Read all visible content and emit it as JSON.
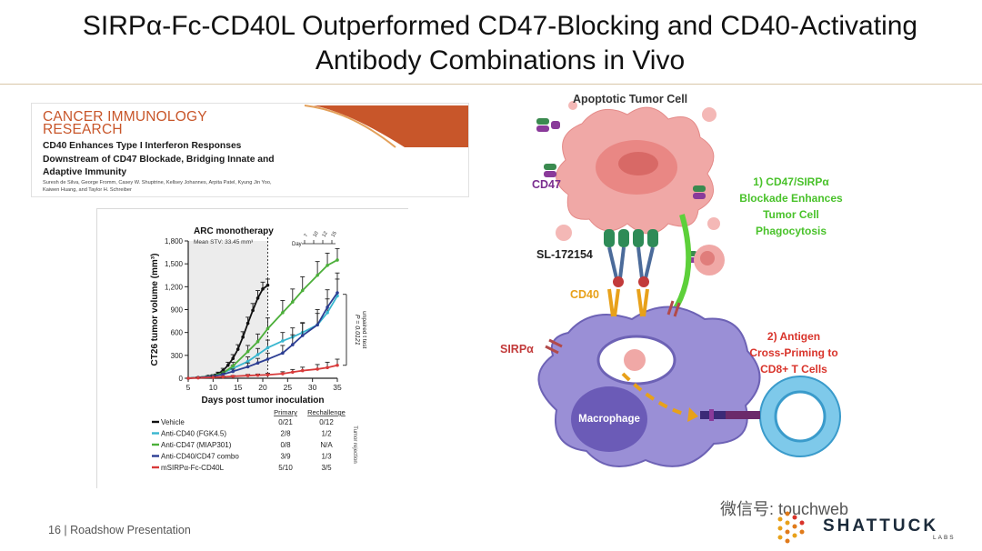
{
  "slide": {
    "title_line1": "SIRPα-Fc-CD40L Outperformed CD47-Blocking and CD40-Activating",
    "title_line2": "Antibody Combinations in Vivo",
    "footer": "16  |  Roadshow Presentation",
    "watermark": "微信号: touchweb",
    "brand_name": "SHATTUCK",
    "brand_sub": "LABS"
  },
  "paper": {
    "journal_line1": "CANCER IMMUNOLOGY",
    "journal_line2": "RESEARCH",
    "title_line1": "CD40 Enhances Type I Interferon Responses",
    "title_line2": "Downstream of CD47 Blockade, Bridging Innate and",
    "title_line3": "Adaptive Immunity",
    "authors_line1": "Suresh de Silva, George Fromm, Casey W. Shuptrine, Kellsey Johannes, Arpita Patel, Kyung Jin Yoo,",
    "authors_line2": "Kaiwen Huang, and Taylor H. Schreiber",
    "accent_color": "#c8562a"
  },
  "chart_data": {
    "type": "line",
    "title": "ARC monotherapy",
    "subtitle": "Mean STV: 33.45 mm³",
    "xlabel": "Days post tumor inoculation",
    "ylabel": "CT26 tumor volume (mm³)",
    "xlim": [
      5,
      35
    ],
    "ylim": [
      0,
      1800
    ],
    "xticks": [
      "5",
      "10",
      "15",
      "20",
      "25",
      "30",
      "35"
    ],
    "yticks": [
      "0",
      "300",
      "600",
      "900",
      "1,200",
      "1,500",
      "1,800"
    ],
    "schedule_label": "Day",
    "schedule_days": [
      "7",
      "10",
      "12",
      "15"
    ],
    "stat_label": "P = 0.0121",
    "stat_sublabel": "unpaired t test",
    "table_headers": [
      "Primary",
      "Rechallenge"
    ],
    "table_side_label": "Tumor rejection",
    "series": [
      {
        "name": "Vehicle",
        "color": "#111111",
        "primary": "0/21",
        "rechallenge": "0/12",
        "x": [
          5,
          7,
          9,
          11,
          12,
          13,
          14,
          15,
          16,
          17,
          18,
          19,
          20,
          21
        ],
        "y": [
          0,
          10,
          25,
          60,
          100,
          170,
          260,
          380,
          540,
          720,
          890,
          1050,
          1170,
          1220
        ],
        "err": [
          0,
          5,
          10,
          20,
          30,
          40,
          50,
          60,
          70,
          80,
          90,
          100,
          90,
          80
        ]
      },
      {
        "name": "Anti-CD40 (FGK4.5)",
        "color": "#38b6cf",
        "primary": "2/8",
        "rechallenge": "1/2",
        "x": [
          5,
          7,
          10,
          12,
          14,
          17,
          19,
          21,
          24,
          26,
          28,
          31,
          33,
          35
        ],
        "y": [
          0,
          10,
          30,
          70,
          130,
          220,
          310,
          400,
          490,
          540,
          600,
          700,
          860,
          1080
        ],
        "err": [
          0,
          5,
          15,
          25,
          40,
          60,
          80,
          100,
          110,
          120,
          130,
          150,
          180,
          220
        ]
      },
      {
        "name": "Anti-CD47 (MIAP301)",
        "color": "#4caf3a",
        "primary": "0/8",
        "rechallenge": "N/A",
        "x": [
          5,
          7,
          10,
          12,
          14,
          17,
          19,
          21,
          24,
          26,
          28,
          31,
          33,
          35
        ],
        "y": [
          0,
          10,
          30,
          70,
          160,
          350,
          480,
          650,
          860,
          1000,
          1150,
          1350,
          1480,
          1550
        ],
        "err": [
          0,
          5,
          15,
          25,
          50,
          80,
          100,
          140,
          160,
          170,
          180,
          180,
          160,
          150
        ]
      },
      {
        "name": "Anti-CD40/CD47 combo",
        "color": "#2c3e93",
        "primary": "3/9",
        "rechallenge": "1/3",
        "x": [
          5,
          7,
          10,
          12,
          14,
          17,
          19,
          21,
          24,
          26,
          28,
          31,
          33,
          35
        ],
        "y": [
          0,
          8,
          25,
          50,
          90,
          150,
          200,
          250,
          330,
          440,
          560,
          700,
          930,
          1120
        ],
        "err": [
          0,
          4,
          10,
          20,
          30,
          50,
          60,
          80,
          100,
          130,
          160,
          200,
          230,
          260
        ]
      },
      {
        "name": "mSIRPα-Fc-CD40L",
        "color": "#d83a3a",
        "primary": "5/10",
        "rechallenge": "3/5",
        "x": [
          5,
          7,
          10,
          12,
          14,
          17,
          19,
          21,
          24,
          26,
          28,
          31,
          33,
          35
        ],
        "y": [
          0,
          5,
          12,
          18,
          25,
          35,
          40,
          45,
          60,
          80,
          100,
          120,
          140,
          170
        ],
        "err": [
          0,
          3,
          5,
          8,
          10,
          15,
          15,
          20,
          25,
          35,
          45,
          60,
          70,
          80
        ]
      }
    ]
  },
  "diagram": {
    "tumor_label": "Apoptotic Tumor Cell",
    "cd47_label": "CD47",
    "drug_label": "SL-172154",
    "cd40_label": "CD40",
    "sirpa_label": "SIRPα",
    "macrophage_label": "Macrophage",
    "step1_lines": [
      "1) CD47/SIRPα",
      "Blockade Enhances",
      "Tumor Cell",
      "Phagocytosis"
    ],
    "step2_lines": [
      "2) Antigen",
      "Cross-Priming to",
      "CD8+ T Cells"
    ],
    "step1_color": "#49c22a",
    "step2_color": "#d9342b",
    "cd47_color": "#7a2e8f",
    "cd40_color": "#e8a11a"
  }
}
